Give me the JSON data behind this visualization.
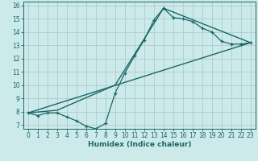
{
  "xlabel": "Humidex (Indice chaleur)",
  "bg_color": "#cdeaea",
  "grid_color": "#b0d0d0",
  "line_color": "#1a6666",
  "spine_color": "#1a6666",
  "xlim": [
    -0.5,
    23.5
  ],
  "ylim": [
    6.7,
    16.3
  ],
  "xticks": [
    0,
    1,
    2,
    3,
    4,
    5,
    6,
    7,
    8,
    9,
    10,
    11,
    12,
    13,
    14,
    15,
    16,
    17,
    18,
    19,
    20,
    21,
    22,
    23
  ],
  "yticks": [
    7,
    8,
    9,
    10,
    11,
    12,
    13,
    14,
    15,
    16
  ],
  "line1_x": [
    0,
    1,
    2,
    3,
    4,
    5,
    6,
    7,
    8,
    9,
    10,
    11,
    12,
    13,
    14,
    15,
    16,
    17,
    18,
    19,
    20,
    21,
    22,
    23
  ],
  "line1_y": [
    7.9,
    7.7,
    7.9,
    7.9,
    7.6,
    7.3,
    6.9,
    6.7,
    7.1,
    9.4,
    10.9,
    12.2,
    13.4,
    14.9,
    15.8,
    15.1,
    15.0,
    14.8,
    14.3,
    14.0,
    13.3,
    13.1,
    13.1,
    13.2
  ],
  "line2_x": [
    0,
    3,
    9,
    14,
    23
  ],
  "line2_y": [
    7.9,
    8.1,
    10.0,
    15.8,
    13.2
  ],
  "line3_x": [
    0,
    23
  ],
  "line3_y": [
    7.9,
    13.2
  ],
  "tick_fontsize": 5.5,
  "xlabel_fontsize": 6.5
}
